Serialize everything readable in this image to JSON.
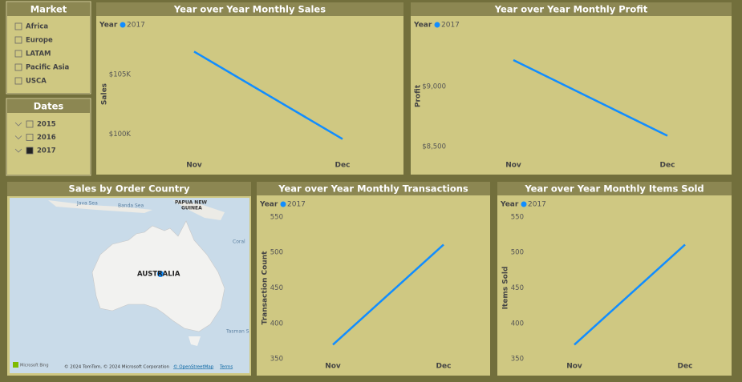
{
  "slicers": [
    {
      "title": "Market",
      "items": [
        {
          "label": "Africa",
          "checked": false
        },
        {
          "label": "Europe",
          "checked": false
        },
        {
          "label": "LATAM",
          "checked": false
        },
        {
          "label": "Pacific Asia",
          "checked": false
        },
        {
          "label": "USCA",
          "checked": false
        }
      ]
    },
    {
      "title": "Dates",
      "items": [
        {
          "label": "2015",
          "checked": false
        },
        {
          "label": "2016",
          "checked": false
        },
        {
          "label": "2017",
          "checked": true
        }
      ]
    }
  ],
  "map": {
    "title": "Sales by Order Country",
    "labels": [
      "Java Sea",
      "Banda Sea",
      "PAPUA NEW",
      "GUINEA",
      "Coral",
      "AUSTRALIA",
      "Tasman S"
    ],
    "attribution": {
      "brand": "Microsoft Bing",
      "copyright": "© 2024 TomTom, © 2024 Microsoft Corporation",
      "osm": "© OpenStreetMap",
      "terms": "Terms"
    }
  },
  "chart_data": [
    {
      "type": "line",
      "title": "Year over Year Monthly Sales",
      "legend_title": "Year",
      "y_label": "Sales",
      "categories": [
        "Nov",
        "Dec"
      ],
      "series": [
        {
          "name": "2017",
          "color": "#118dff",
          "values": [
            106900,
            99600
          ]
        }
      ],
      "ylim": [
        98500,
        108200
      ],
      "yticks": [
        {
          "value": 100000,
          "label": "$100K"
        },
        {
          "value": 105000,
          "label": "$105K"
        }
      ]
    },
    {
      "type": "line",
      "title": "Year over Year Monthly Profit",
      "legend_title": "Year",
      "y_label": "Profit",
      "categories": [
        "Nov",
        "Dec"
      ],
      "series": [
        {
          "name": "2017",
          "color": "#118dff",
          "values": [
            9220,
            8590
          ]
        }
      ],
      "ylim": [
        8420,
        9420
      ],
      "yticks": [
        {
          "value": 8500,
          "label": "$8,500"
        },
        {
          "value": 9000,
          "label": "$9,000"
        }
      ]
    },
    {
      "type": "line",
      "title": "Year over Year Monthly Transactions",
      "legend_title": "Year",
      "y_label": "Transaction Count",
      "categories": [
        "Nov",
        "Dec"
      ],
      "series": [
        {
          "name": "2017",
          "color": "#118dff",
          "values": [
            370,
            511
          ]
        }
      ],
      "ylim": [
        340,
        560
      ],
      "yticks": [
        350,
        400,
        450,
        500,
        550
      ]
    },
    {
      "type": "line",
      "title": "Year over Year Monthly Items Sold",
      "legend_title": "Year",
      "y_label": "Items Sold",
      "categories": [
        "Nov",
        "Dec"
      ],
      "series": [
        {
          "name": "2017",
          "color": "#118dff",
          "values": [
            370,
            511
          ]
        }
      ],
      "ylim": [
        340,
        560
      ],
      "yticks": [
        350,
        400,
        450,
        500,
        550
      ]
    }
  ]
}
